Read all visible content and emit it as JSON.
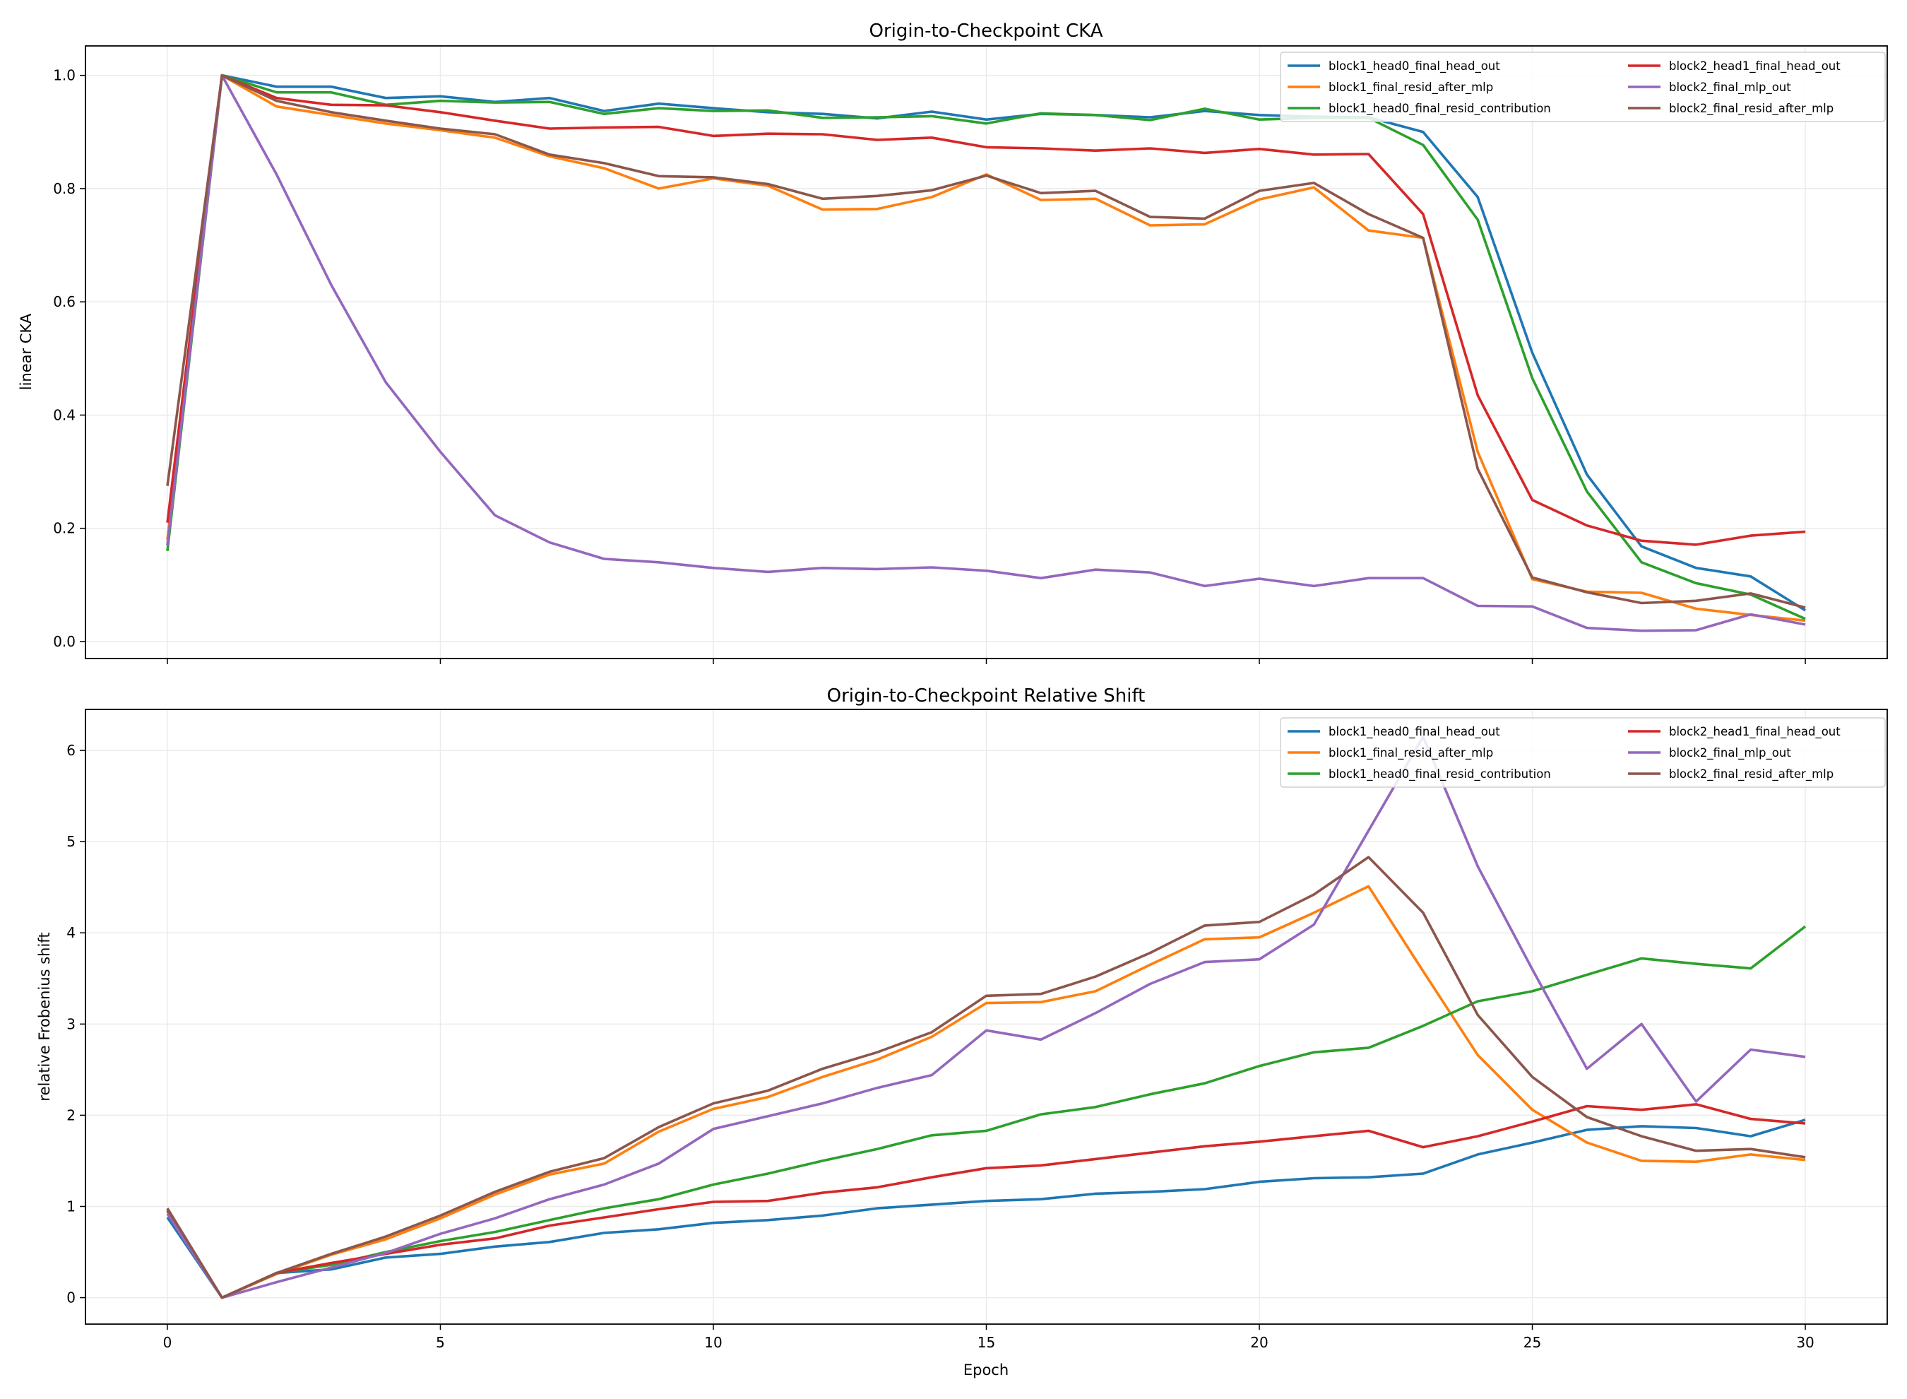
{
  "chart_data": [
    {
      "type": "line",
      "title": "Origin-to-Checkpoint CKA",
      "xlabel": "",
      "ylabel": "linear CKA",
      "xlim": [
        -1.5,
        31.5
      ],
      "ylim": [
        -0.03,
        1.052
      ],
      "xticks": [
        0,
        5,
        10,
        15,
        20,
        25,
        30
      ],
      "yticks": [
        0.0,
        0.2,
        0.4,
        0.6,
        0.8,
        1.0
      ],
      "ytick_labels": [
        "0.0",
        "0.2",
        "0.4",
        "0.6",
        "0.8",
        "1.0"
      ],
      "grid": true,
      "legend_placement": "top-right",
      "x": [
        0,
        1,
        2,
        3,
        4,
        5,
        6,
        7,
        8,
        9,
        10,
        11,
        12,
        13,
        14,
        15,
        16,
        17,
        18,
        19,
        20,
        21,
        22,
        23,
        24,
        25,
        26,
        27,
        28,
        29,
        30
      ],
      "series": [
        {
          "name": "block1_head0_final_head_out",
          "color": "#1f77b4",
          "values": [
            0.17,
            1.0,
            0.98,
            0.98,
            0.96,
            0.963,
            0.953,
            0.96,
            0.937,
            0.95,
            0.942,
            0.935,
            0.932,
            0.924,
            0.936,
            0.922,
            0.932,
            0.93,
            0.926,
            0.937,
            0.93,
            0.927,
            0.926,
            0.9,
            0.785,
            0.51,
            0.295,
            0.168,
            0.13,
            0.115,
            0.055
          ]
        },
        {
          "name": "block1_final_resid_after_mlp",
          "color": "#ff7f0e",
          "values": [
            0.18,
            1.0,
            0.945,
            0.93,
            0.915,
            0.903,
            0.89,
            0.857,
            0.836,
            0.8,
            0.818,
            0.805,
            0.763,
            0.764,
            0.785,
            0.825,
            0.78,
            0.782,
            0.735,
            0.737,
            0.781,
            0.802,
            0.726,
            0.713,
            0.335,
            0.11,
            0.088,
            0.086,
            0.058,
            0.047,
            0.037
          ]
        },
        {
          "name": "block1_head0_final_resid_contribution",
          "color": "#2ca02c",
          "values": [
            0.16,
            1.0,
            0.97,
            0.97,
            0.948,
            0.955,
            0.952,
            0.953,
            0.932,
            0.942,
            0.937,
            0.938,
            0.925,
            0.926,
            0.928,
            0.915,
            0.933,
            0.93,
            0.921,
            0.941,
            0.922,
            0.925,
            0.925,
            0.877,
            0.745,
            0.465,
            0.265,
            0.14,
            0.103,
            0.083,
            0.04
          ]
        },
        {
          "name": "block2_head1_final_head_out",
          "color": "#d62728",
          "values": [
            0.21,
            1.0,
            0.96,
            0.948,
            0.947,
            0.935,
            0.92,
            0.906,
            0.908,
            0.909,
            0.893,
            0.897,
            0.896,
            0.886,
            0.89,
            0.873,
            0.871,
            0.867,
            0.871,
            0.863,
            0.87,
            0.86,
            0.861,
            0.755,
            0.435,
            0.25,
            0.205,
            0.178,
            0.171,
            0.187,
            0.194
          ]
        },
        {
          "name": "block2_final_mlp_out",
          "color": "#9467bd",
          "values": [
            0.17,
            1.0,
            0.825,
            0.63,
            0.458,
            0.335,
            0.223,
            0.175,
            0.146,
            0.14,
            0.13,
            0.123,
            0.13,
            0.128,
            0.131,
            0.125,
            0.112,
            0.127,
            0.122,
            0.098,
            0.111,
            0.098,
            0.112,
            0.112,
            0.063,
            0.062,
            0.024,
            0.019,
            0.02,
            0.048,
            0.03
          ]
        },
        {
          "name": "block2_final_resid_after_mlp",
          "color": "#8c564b",
          "values": [
            0.275,
            1.0,
            0.955,
            0.935,
            0.92,
            0.906,
            0.896,
            0.86,
            0.845,
            0.822,
            0.82,
            0.808,
            0.782,
            0.787,
            0.797,
            0.823,
            0.792,
            0.796,
            0.75,
            0.747,
            0.796,
            0.81,
            0.755,
            0.713,
            0.305,
            0.113,
            0.087,
            0.068,
            0.072,
            0.085,
            0.06
          ]
        }
      ]
    },
    {
      "type": "line",
      "title": "Origin-to-Checkpoint Relative Shift",
      "xlabel": "Epoch",
      "ylabel": "relative Frobenius shift",
      "xlim": [
        -1.5,
        31.5
      ],
      "ylim": [
        -0.29,
        6.45
      ],
      "xticks": [
        0,
        5,
        10,
        15,
        20,
        25,
        30
      ],
      "yticks": [
        0,
        1,
        2,
        3,
        4,
        5,
        6
      ],
      "ytick_labels": [
        "0",
        "1",
        "2",
        "3",
        "4",
        "5",
        "6"
      ],
      "grid": true,
      "legend_placement": "top-right",
      "x": [
        0,
        1,
        2,
        3,
        4,
        5,
        6,
        7,
        8,
        9,
        10,
        11,
        12,
        13,
        14,
        15,
        16,
        17,
        18,
        19,
        20,
        21,
        22,
        23,
        24,
        25,
        26,
        27,
        28,
        29,
        30
      ],
      "series": [
        {
          "name": "block1_head0_final_head_out",
          "color": "#1f77b4",
          "values": [
            0.88,
            0,
            0.27,
            0.31,
            0.44,
            0.48,
            0.56,
            0.61,
            0.71,
            0.75,
            0.82,
            0.85,
            0.9,
            0.98,
            1.02,
            1.06,
            1.08,
            1.14,
            1.16,
            1.19,
            1.27,
            1.31,
            1.32,
            1.36,
            1.57,
            1.7,
            1.84,
            1.88,
            1.86,
            1.77,
            1.95
          ]
        },
        {
          "name": "block1_final_resid_after_mlp",
          "color": "#ff7f0e",
          "values": [
            0.97,
            0,
            0.26,
            0.47,
            0.64,
            0.87,
            1.13,
            1.35,
            1.47,
            1.82,
            2.07,
            2.2,
            2.42,
            2.61,
            2.86,
            3.23,
            3.24,
            3.36,
            3.65,
            3.93,
            3.95,
            4.22,
            4.51,
            3.58,
            2.66,
            2.06,
            1.7,
            1.5,
            1.49,
            1.57,
            1.51
          ]
        },
        {
          "name": "block1_head0_final_resid_contribution",
          "color": "#2ca02c",
          "values": [
            0.96,
            0,
            0.27,
            0.36,
            0.5,
            0.62,
            0.72,
            0.85,
            0.98,
            1.08,
            1.24,
            1.36,
            1.5,
            1.63,
            1.78,
            1.83,
            2.01,
            2.09,
            2.23,
            2.35,
            2.54,
            2.69,
            2.74,
            2.98,
            3.25,
            3.36,
            3.54,
            3.72,
            3.66,
            3.61,
            4.07
          ]
        },
        {
          "name": "block2_head1_final_head_out",
          "color": "#d62728",
          "values": [
            0.95,
            0,
            0.27,
            0.38,
            0.48,
            0.58,
            0.65,
            0.79,
            0.88,
            0.97,
            1.05,
            1.06,
            1.15,
            1.21,
            1.32,
            1.42,
            1.45,
            1.52,
            1.59,
            1.66,
            1.71,
            1.77,
            1.83,
            1.65,
            1.77,
            1.93,
            2.1,
            2.06,
            2.12,
            1.96,
            1.91
          ]
        },
        {
          "name": "block2_final_mlp_out",
          "color": "#9467bd",
          "values": [
            0.92,
            0,
            0.17,
            0.33,
            0.49,
            0.7,
            0.87,
            1.08,
            1.24,
            1.47,
            1.85,
            1.99,
            2.13,
            2.3,
            2.44,
            2.93,
            2.83,
            3.12,
            3.44,
            3.68,
            3.71,
            4.09,
            5.12,
            6.15,
            4.73,
            3.6,
            2.51,
            3.0,
            2.15,
            2.72,
            2.64
          ]
        },
        {
          "name": "block2_final_resid_after_mlp",
          "color": "#8c564b",
          "values": [
            0.98,
            0,
            0.27,
            0.48,
            0.67,
            0.9,
            1.16,
            1.38,
            1.53,
            1.87,
            2.13,
            2.27,
            2.51,
            2.69,
            2.91,
            3.31,
            3.33,
            3.52,
            3.78,
            4.08,
            4.12,
            4.42,
            4.83,
            4.22,
            3.1,
            2.42,
            1.98,
            1.77,
            1.61,
            1.63,
            1.54
          ]
        }
      ]
    }
  ]
}
